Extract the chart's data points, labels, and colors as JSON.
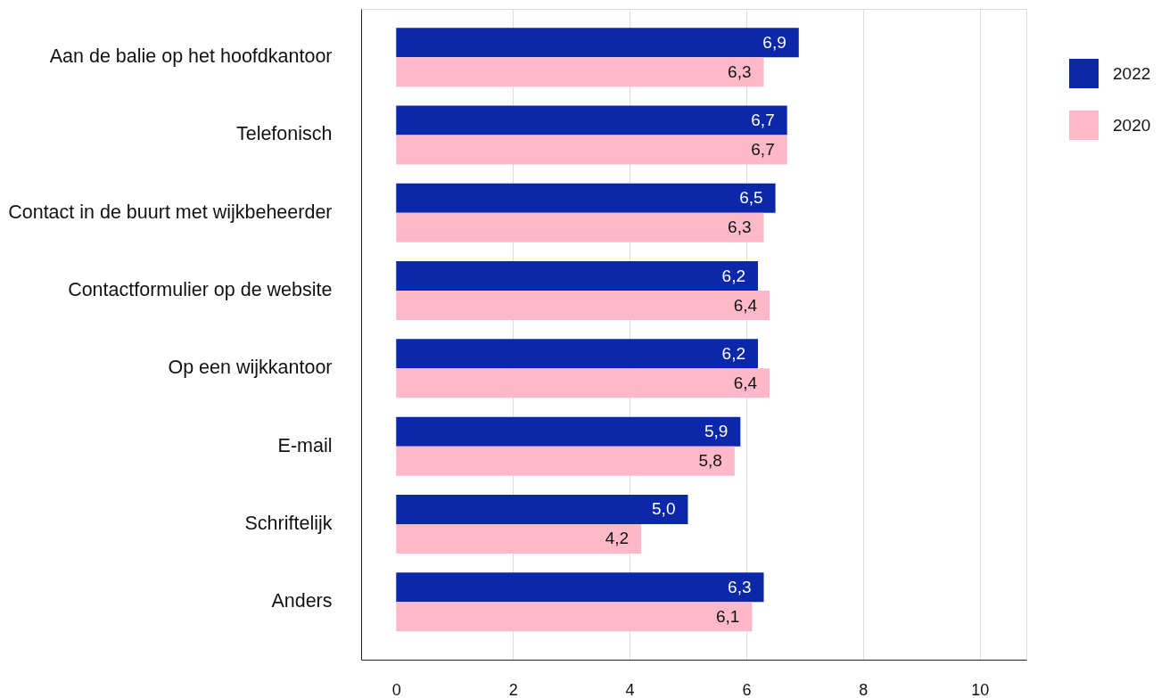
{
  "chart_data": {
    "type": "bar",
    "orientation": "horizontal",
    "categories": [
      "Aan de balie op het hoofdkantoor",
      "Telefonisch",
      "Contact in de buurt met wijkbeheerder",
      "Contactformulier op de website",
      "Op een wijkkantoor",
      "E-mail",
      "Schriftelijk",
      "Anders"
    ],
    "series": [
      {
        "name": "2022",
        "color": "#0b28ab",
        "values": [
          6.9,
          6.7,
          6.5,
          6.2,
          6.2,
          5.9,
          5.0,
          6.3
        ],
        "value_labels": [
          "6,9",
          "6,7",
          "6,5",
          "6,2",
          "6,2",
          "5,9",
          "5,0",
          "6,3"
        ]
      },
      {
        "name": "2020",
        "color": "#fdb9c9",
        "values": [
          6.3,
          6.7,
          6.3,
          6.4,
          6.4,
          5.8,
          4.2,
          6.1
        ],
        "value_labels": [
          "6,3",
          "6,7",
          "6,3",
          "6,4",
          "6,4",
          "5,8",
          "4,2",
          "6,1"
        ]
      }
    ],
    "xlim": [
      -0.6,
      10.8
    ],
    "xticks": [
      0,
      2,
      4,
      6,
      8,
      10
    ],
    "grid": "x",
    "legend": "top right"
  }
}
